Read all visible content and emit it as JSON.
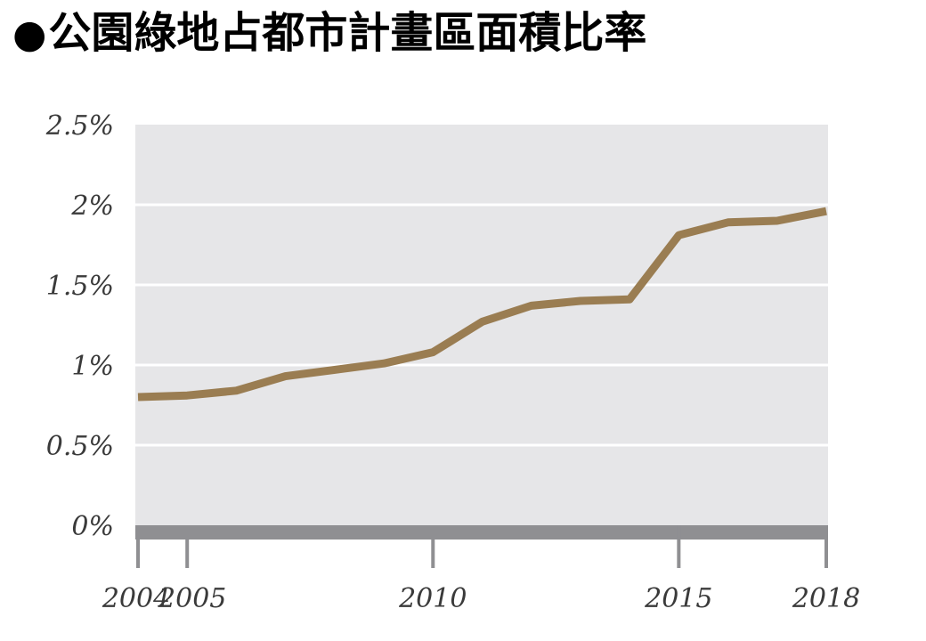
{
  "title": {
    "bullet": "●",
    "text": "公園綠地占都市計畫區面積比率"
  },
  "colors": {
    "plot_bg": "#e6e6e8",
    "grid": "#ffffff",
    "line": "#9a7d52",
    "axis_bar": "#8f8f92"
  },
  "chart_data": {
    "type": "line",
    "title": "公園綠地占都市計畫區面積比率",
    "xlabel": "",
    "ylabel": "",
    "grid": true,
    "ylim": [
      0,
      2.5
    ],
    "xlim": [
      2004,
      2018
    ],
    "y_ticks": [
      {
        "value": 0,
        "label": "0%"
      },
      {
        "value": 0.5,
        "label": "0.5%"
      },
      {
        "value": 1,
        "label": "1%"
      },
      {
        "value": 1.5,
        "label": "1.5%"
      },
      {
        "value": 2,
        "label": "2%"
      },
      {
        "value": 2.5,
        "label": "2.5%"
      }
    ],
    "x_ticks": [
      {
        "value": 2004,
        "label": "2004"
      },
      {
        "value": 2005,
        "label": "2005"
      },
      {
        "value": 2010,
        "label": "2010"
      },
      {
        "value": 2015,
        "label": "2015"
      },
      {
        "value": 2018,
        "label": "2018"
      }
    ],
    "x": [
      2004,
      2005,
      2006,
      2007,
      2008,
      2009,
      2010,
      2011,
      2012,
      2013,
      2014,
      2015,
      2016,
      2017,
      2018
    ],
    "series": [
      {
        "values": [
          0.8,
          0.81,
          0.84,
          0.93,
          0.97,
          1.01,
          1.08,
          1.27,
          1.37,
          1.4,
          1.41,
          1.81,
          1.89,
          1.9,
          1.96
        ]
      }
    ]
  }
}
